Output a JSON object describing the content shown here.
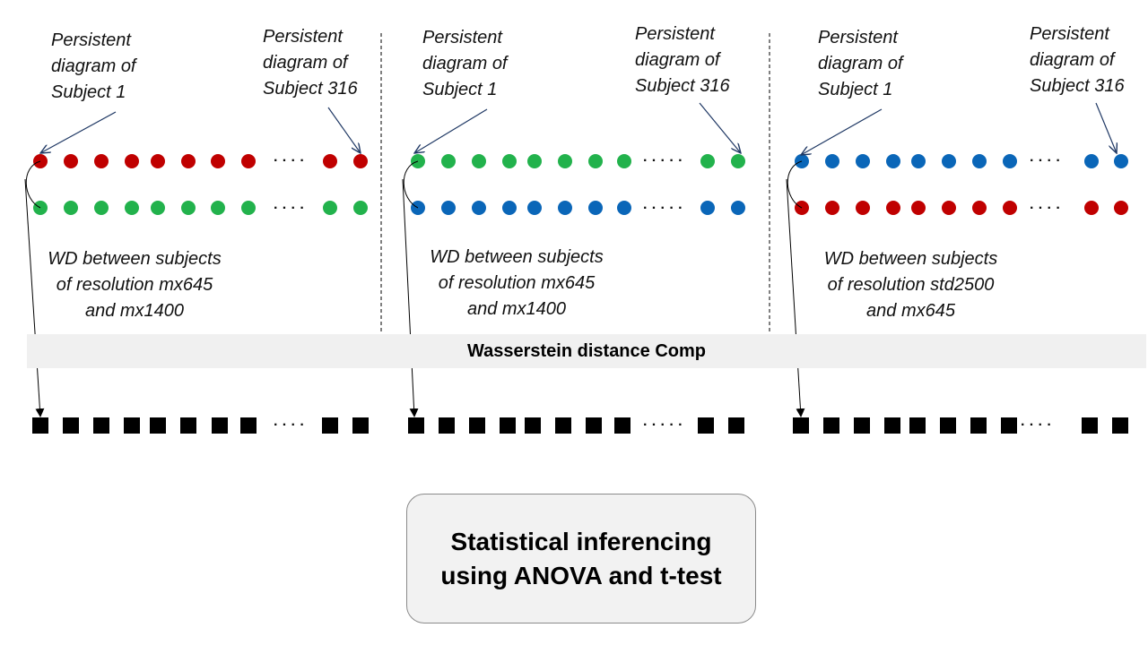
{
  "panels": [
    {
      "label_first": [
        "Persistent",
        "diagram of",
        "Subject 1"
      ],
      "label_last": [
        "Persistent",
        "diagram of",
        "Subject 316"
      ],
      "row1_color": "#c00000",
      "row2_color": "#22b24c",
      "ellipsis": "· · · ·",
      "wd_label": [
        "WD between subjects",
        "of resolution mx645",
        "and mx1400"
      ]
    },
    {
      "label_first": [
        "Persistent",
        "diagram of",
        "Subject 1"
      ],
      "label_last": [
        "Persistent",
        "diagram of",
        "Subject 316"
      ],
      "row1_color": "#22b24c",
      "row2_color": "#0a66b8",
      "ellipsis": "· · · · ·",
      "wd_label": [
        "WD between subjects",
        "of resolution mx645",
        "and mx1400"
      ]
    },
    {
      "label_first": [
        "Persistent",
        "diagram of",
        "Subject 1"
      ],
      "label_last": [
        "Persistent",
        "diagram of",
        "Subject 316"
      ],
      "row1_color": "#0a66b8",
      "row2_color": "#c00000",
      "ellipsis": "· · · ·",
      "wd_label": [
        "WD between subjects",
        "of resolution std2500",
        "and mx645"
      ]
    }
  ],
  "band_label": "Wasserstein distance Comp",
  "statistics_box": [
    "Statistical inferencing",
    "using ANOVA and t-test"
  ],
  "square_color": "#000000"
}
